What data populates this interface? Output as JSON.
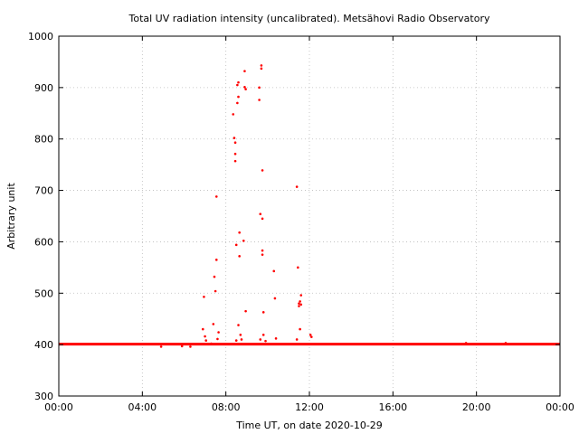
{
  "chart_data": {
    "type": "scatter",
    "title": "Total UV radiation intensity (uncalibrated). Metsähovi Radio Observatory",
    "xlabel": "Time UT, on date 2020-10-29",
    "ylabel": "Arbitrary unit",
    "xlim": [
      0,
      24
    ],
    "ylim": [
      300,
      1000
    ],
    "x_ticks": [
      0,
      4,
      8,
      12,
      16,
      20,
      24
    ],
    "x_tick_labels": [
      "00:00",
      "04:00",
      "08:00",
      "12:00",
      "16:00",
      "20:00",
      "00:00"
    ],
    "y_ticks": [
      300,
      400,
      500,
      600,
      700,
      800,
      900,
      1000
    ],
    "y_tick_labels": [
      "300",
      "400",
      "500",
      "600",
      "700",
      "800",
      "900",
      "1000"
    ],
    "grid": true,
    "marker_color": "#ff0000",
    "baseline": {
      "x_start": 0,
      "x_end": 24,
      "value": 401
    },
    "points": [
      [
        6.95,
        493
      ],
      [
        6.9,
        430
      ],
      [
        7.0,
        416
      ],
      [
        7.05,
        408
      ],
      [
        7.3,
        402
      ],
      [
        7.4,
        440
      ],
      [
        7.45,
        532
      ],
      [
        7.5,
        504
      ],
      [
        7.55,
        565
      ],
      [
        7.55,
        688
      ],
      [
        7.65,
        424
      ],
      [
        7.6,
        411
      ],
      [
        8.35,
        848
      ],
      [
        8.4,
        802
      ],
      [
        8.45,
        793
      ],
      [
        8.45,
        771
      ],
      [
        8.45,
        757
      ],
      [
        8.5,
        594
      ],
      [
        8.5,
        408
      ],
      [
        8.55,
        870
      ],
      [
        8.55,
        905
      ],
      [
        8.6,
        910
      ],
      [
        8.6,
        882
      ],
      [
        8.6,
        438
      ],
      [
        8.65,
        618
      ],
      [
        8.65,
        572
      ],
      [
        8.7,
        419
      ],
      [
        8.75,
        410
      ],
      [
        8.85,
        602
      ],
      [
        8.9,
        932
      ],
      [
        8.9,
        901
      ],
      [
        8.95,
        897
      ],
      [
        8.95,
        465
      ],
      [
        9.6,
        900
      ],
      [
        9.6,
        876
      ],
      [
        9.65,
        654
      ],
      [
        9.65,
        410
      ],
      [
        9.7,
        943
      ],
      [
        9.7,
        937
      ],
      [
        9.75,
        739
      ],
      [
        9.75,
        645
      ],
      [
        9.75,
        583
      ],
      [
        9.75,
        575
      ],
      [
        9.8,
        463
      ],
      [
        9.8,
        419
      ],
      [
        9.9,
        407
      ],
      [
        10.3,
        543
      ],
      [
        10.35,
        490
      ],
      [
        10.4,
        412
      ],
      [
        11.4,
        707
      ],
      [
        11.45,
        550
      ],
      [
        11.5,
        480
      ],
      [
        11.5,
        475
      ],
      [
        11.55,
        484
      ],
      [
        11.55,
        430
      ],
      [
        11.6,
        496
      ],
      [
        11.6,
        478
      ],
      [
        11.4,
        410
      ],
      [
        12.05,
        419
      ],
      [
        12.1,
        415
      ],
      [
        5.9,
        397
      ],
      [
        6.3,
        396
      ],
      [
        4.9,
        396
      ],
      [
        19.5,
        403
      ],
      [
        21.4,
        403
      ]
    ]
  }
}
